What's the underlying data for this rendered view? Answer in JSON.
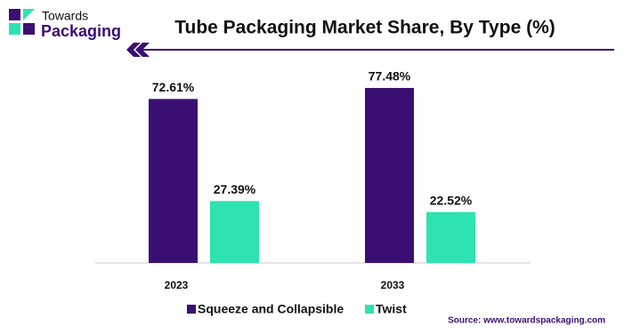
{
  "logo": {
    "line1": "Towards",
    "line2": "Packaging"
  },
  "chart_data": {
    "type": "bar",
    "title": "Tube Packaging Market Share, By Type (%)",
    "categories": [
      "2023",
      "2033"
    ],
    "series": [
      {
        "name": "Squeeze and Collapsible",
        "color": "#3b0f72",
        "values": [
          72.61,
          77.48
        ],
        "value_labels": [
          "72.61%",
          "77.48%"
        ]
      },
      {
        "name": "Twist",
        "color": "#2ee3b1",
        "values": [
          27.39,
          22.52
        ],
        "value_labels": [
          "27.39%",
          "22.52%"
        ]
      }
    ],
    "source": "Source: www.towardspackaging.com"
  }
}
